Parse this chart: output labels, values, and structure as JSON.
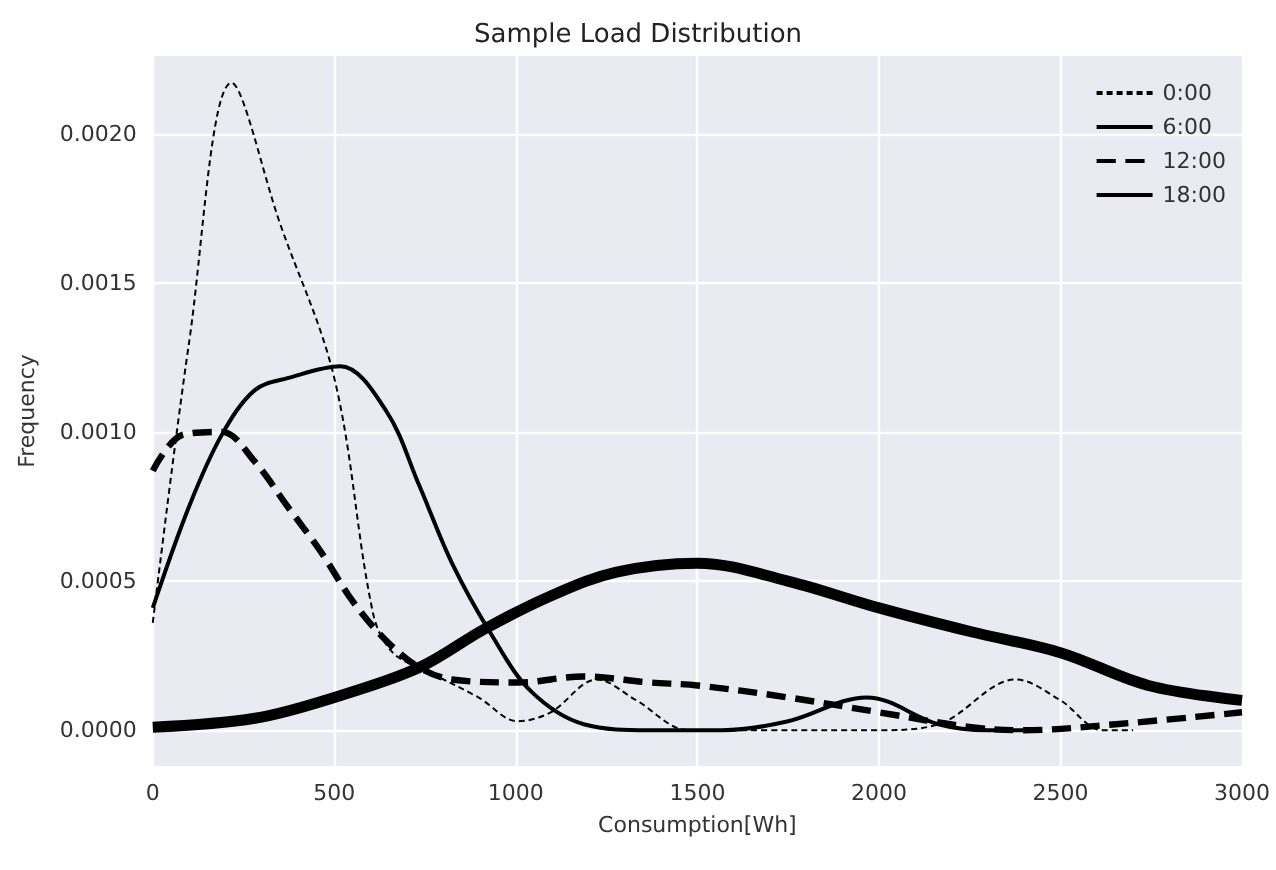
{
  "chart_data": {
    "type": "line",
    "title": "Sample Load Distribution",
    "xlabel": "Consumption[Wh]",
    "ylabel": "Frequency",
    "xlim": [
      0,
      3000
    ],
    "xticks": [
      0,
      500,
      1000,
      1500,
      2000,
      2500,
      3000
    ],
    "ylim": [
      -0.00012,
      0.00226
    ],
    "yticks": [
      {
        "value": 0,
        "label": "0.0000"
      },
      {
        "value": 0.0005,
        "label": "0.0005"
      },
      {
        "value": 0.001,
        "label": "0.0010"
      },
      {
        "value": 0.0015,
        "label": "0.0015"
      },
      {
        "value": 0.002,
        "label": "0.0020"
      }
    ],
    "grid": true,
    "legend": "top right",
    "marker": "none",
    "series": [
      {
        "name": "0:00",
        "color": "#000000",
        "line_style": "dashed",
        "x": [
          0,
          100,
          217,
          350,
          500,
          607,
          661,
          752,
          897,
          1005,
          1096,
          1223,
          1332,
          1476,
          1700,
          2000,
          2164,
          2377,
          2500,
          2616,
          2700
        ],
        "values": [
          0.00036,
          0.0013,
          0.00217,
          0.0017,
          0.00118,
          0.00039,
          0.00026,
          0.0002,
          0.00011,
          3e-05,
          6e-05,
          0.00017,
          0.0001,
          0,
          0,
          0,
          2e-05,
          0.00017,
          0.0001,
          0,
          0
        ]
      },
      {
        "name": "6:00",
        "color": "#000000",
        "line_style": "solid",
        "x": [
          0,
          100,
          190,
          281,
          371,
          516,
          643,
          734,
          824,
          933,
          1042,
          1187,
          1368,
          1569,
          1750,
          1966,
          2164,
          2300,
          2435
        ],
        "values": [
          0.00041,
          0.00075,
          0.00099,
          0.00114,
          0.00118,
          0.00122,
          0.00107,
          0.00082,
          0.00056,
          0.00032,
          0.00013,
          2e-05,
          0,
          0,
          3e-05,
          0.00011,
          2e-05,
          0,
          0
        ]
      },
      {
        "name": "12:00",
        "color": "#000000",
        "line_style": "dashed",
        "x": [
          0,
          82,
          190,
          281,
          371,
          462,
          552,
          643,
          734,
          824,
          1005,
          1187,
          1368,
          1500,
          1749,
          2000,
          2254,
          2399,
          2652,
          3000
        ],
        "values": [
          0.00087,
          0.00099,
          0.001,
          0.0009,
          0.00075,
          0.0006,
          0.00043,
          0.0003,
          0.00021,
          0.00017,
          0.00016,
          0.00018,
          0.00016,
          0.00015,
          0.00011,
          6e-05,
          1e-05,
          0,
          2e-05,
          6e-05
        ]
      },
      {
        "name": "18:00",
        "color": "#000000",
        "line_style": "solid",
        "x": [
          0,
          281,
          500,
          734,
          915,
          1096,
          1277,
          1500,
          1749,
          2000,
          2254,
          2500,
          2742,
          3000
        ],
        "values": [
          1e-05,
          4e-05,
          0.00011,
          0.00021,
          0.00034,
          0.00045,
          0.00053,
          0.00056,
          0.0005,
          0.00041,
          0.00033,
          0.00026,
          0.00015,
          0.0001
        ]
      }
    ]
  }
}
